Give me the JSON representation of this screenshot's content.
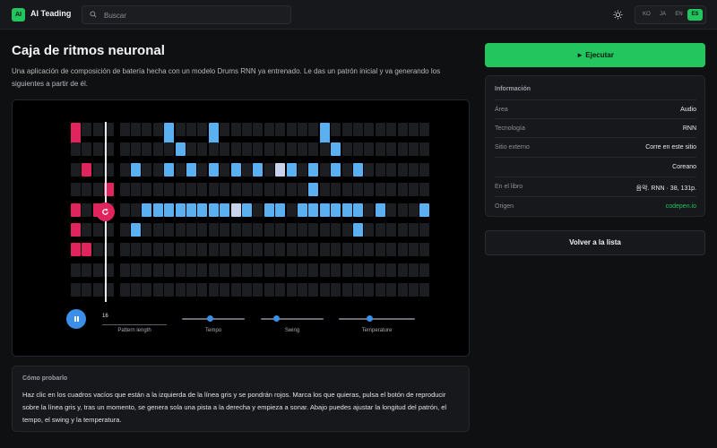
{
  "app": {
    "logo_text": "AI",
    "brand": "AI Teading"
  },
  "search": {
    "placeholder": "Buscar"
  },
  "languages": [
    {
      "code": "KO",
      "active": false
    },
    {
      "code": "JA",
      "active": false
    },
    {
      "code": "EN",
      "active": false
    },
    {
      "code": "ES",
      "active": true
    }
  ],
  "page": {
    "title": "Caja de ritmos neuronal",
    "description": "Una aplicación de composición de batería hecha con un modelo Drums RNN ya entrenado. Le das un patrón inicial y va generando los siguientes a partir de él."
  },
  "drum_machine": {
    "columns": 32,
    "rows": 9,
    "playhead_column": 4,
    "seed_cells": [
      [
        0,
        0
      ],
      [
        2,
        1
      ],
      [
        3,
        3
      ],
      [
        4,
        0
      ],
      [
        4,
        2
      ],
      [
        5,
        0
      ],
      [
        6,
        0
      ],
      [
        6,
        1
      ]
    ],
    "generated_cells": [
      [
        0,
        8
      ],
      [
        0,
        12
      ],
      [
        0,
        22
      ],
      [
        1,
        9
      ],
      [
        1,
        23
      ],
      [
        2,
        5
      ],
      [
        2,
        8
      ],
      [
        2,
        10
      ],
      [
        2,
        12
      ],
      [
        2,
        14
      ],
      [
        2,
        16
      ],
      [
        2,
        19
      ],
      [
        2,
        21
      ],
      [
        2,
        23
      ],
      [
        2,
        25
      ],
      [
        3,
        21
      ],
      [
        4,
        6
      ],
      [
        4,
        7
      ],
      [
        4,
        8
      ],
      [
        4,
        9
      ],
      [
        4,
        10
      ],
      [
        4,
        11
      ],
      [
        4,
        12
      ],
      [
        4,
        13
      ],
      [
        4,
        15
      ],
      [
        4,
        17
      ],
      [
        4,
        18
      ],
      [
        4,
        20
      ],
      [
        4,
        21
      ],
      [
        4,
        22
      ],
      [
        4,
        23
      ],
      [
        4,
        24
      ],
      [
        4,
        25
      ],
      [
        4,
        27
      ],
      [
        4,
        31
      ],
      [
        5,
        5
      ],
      [
        5,
        25
      ]
    ],
    "highlight_cells": [
      [
        2,
        18
      ],
      [
        4,
        14
      ]
    ],
    "colors": {
      "seed": "#e0245e",
      "generated": "#5ab0f0",
      "highlight": "#c8d2ec",
      "empty": "#1d1e21"
    },
    "controls": {
      "pattern_length_value": "16",
      "pattern_length_label": "Pattern length",
      "tempo_label": "Tempo",
      "tempo_level": 0.45,
      "swing_label": "Swing",
      "swing_level": 0.25,
      "temperature_label": "Temperature",
      "temperature_level": 0.4
    }
  },
  "howto": {
    "title": "Cómo probarlo",
    "text": "Haz clic en los cuadros vacíos que están a la izquierda de la línea gris y se pondrán rojos. Marca los que quieras, pulsa el botón de reproducir sobre la línea gris y, tras un momento, se genera sola una pista a la derecha y empieza a sonar. Abajo puedes ajustar la longitud del patrón, el tempo, el swing y la temperatura."
  },
  "sidebar": {
    "run_label": "► Ejecutar",
    "info_title": "Información",
    "rows": [
      {
        "key": "Área",
        "value": "Audio"
      },
      {
        "key": "Tecnología",
        "value": "RNN"
      },
      {
        "key": "Sitio externo",
        "value": "Corre en este sitio"
      },
      {
        "key": "",
        "value": "Coreano"
      },
      {
        "key": "En el libro",
        "value": "음악. RNN · 38, 131p."
      },
      {
        "key": "Origen",
        "value": "codepen.io"
      }
    ],
    "back_label": "Volver a la lista"
  }
}
